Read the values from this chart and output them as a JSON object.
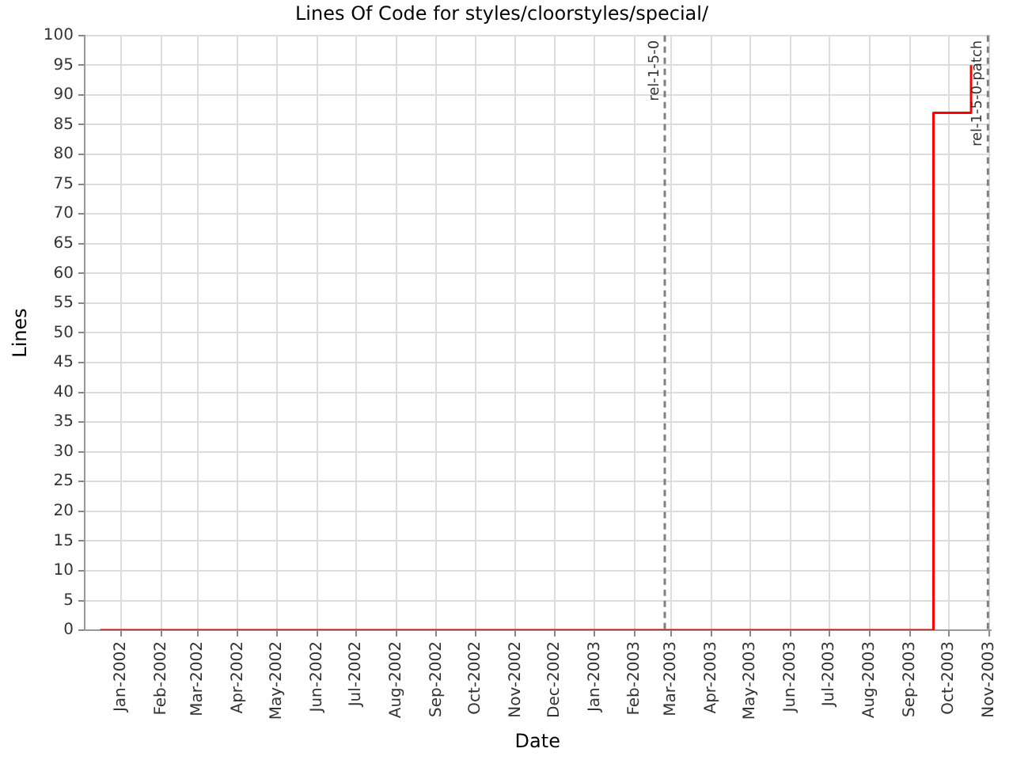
{
  "chart_data": {
    "type": "step",
    "title": "Lines Of Code for styles/cloorstyles/special/",
    "xlabel": "Date",
    "ylabel": "Lines",
    "x": [
      "2001-12-16",
      "2003-09-19",
      "2003-10-18"
    ],
    "series": [
      {
        "color": "#ff0000",
        "values": [
          0,
          87,
          95
        ]
      }
    ],
    "xlim": [
      "2001-12-04",
      "2003-11-02"
    ],
    "xticks": [
      {
        "value": "2002-01-01",
        "label": "Jan-2002"
      },
      {
        "value": "2002-02-01",
        "label": "Feb-2002"
      },
      {
        "value": "2002-03-01",
        "label": "Mar-2002"
      },
      {
        "value": "2002-04-01",
        "label": "Apr-2002"
      },
      {
        "value": "2002-05-01",
        "label": "May-2002"
      },
      {
        "value": "2002-06-01",
        "label": "Jun-2002"
      },
      {
        "value": "2002-07-01",
        "label": "Jul-2002"
      },
      {
        "value": "2002-08-01",
        "label": "Aug-2002"
      },
      {
        "value": "2002-09-01",
        "label": "Sep-2002"
      },
      {
        "value": "2002-10-01",
        "label": "Oct-2002"
      },
      {
        "value": "2002-11-01",
        "label": "Nov-2002"
      },
      {
        "value": "2002-12-01",
        "label": "Dec-2002"
      },
      {
        "value": "2003-01-01",
        "label": "Jan-2003"
      },
      {
        "value": "2003-02-01",
        "label": "Feb-2003"
      },
      {
        "value": "2003-03-01",
        "label": "Mar-2003"
      },
      {
        "value": "2003-04-01",
        "label": "Apr-2003"
      },
      {
        "value": "2003-05-01",
        "label": "May-2003"
      },
      {
        "value": "2003-06-01",
        "label": "Jun-2003"
      },
      {
        "value": "2003-07-01",
        "label": "Jul-2003"
      },
      {
        "value": "2003-08-01",
        "label": "Aug-2003"
      },
      {
        "value": "2003-09-01",
        "label": "Sep-2003"
      },
      {
        "value": "2003-10-01",
        "label": "Oct-2003"
      },
      {
        "value": "2003-11-01",
        "label": "Nov-2003"
      }
    ],
    "ylim": [
      0,
      100
    ],
    "yticks": [
      0,
      5,
      10,
      15,
      20,
      25,
      30,
      35,
      40,
      45,
      50,
      55,
      60,
      65,
      70,
      75,
      80,
      85,
      90,
      95,
      100
    ],
    "grid": true,
    "legend": false,
    "marker": "none",
    "line_style": "solid",
    "ref_lines": [
      {
        "axis": "x",
        "value": "2003-02-24",
        "label": "rel-1-5-0",
        "color": "#808080",
        "line_style": "dashed"
      },
      {
        "axis": "x",
        "value": "2003-10-31",
        "label": "rel-1-5-0-patch",
        "color": "#808080",
        "line_style": "dashed"
      }
    ]
  }
}
